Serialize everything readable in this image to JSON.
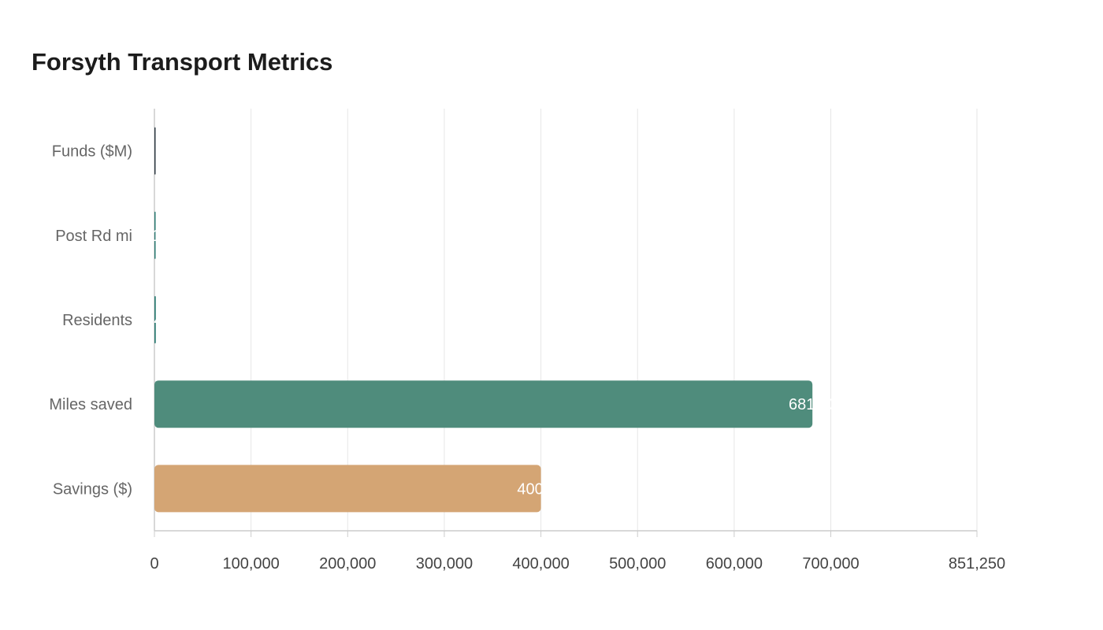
{
  "chart_data": {
    "type": "bar",
    "orientation": "horizontal",
    "title": "Forsyth Transport Metrics",
    "xlabel": "",
    "ylabel": "",
    "categories": [
      "Funds ($M)",
      "Post Rd mi",
      "Residents",
      "Miles saved",
      "Savings ($)"
    ],
    "values": [
      6,
      18,
      1400,
      681000,
      400000
    ],
    "bar_colors": [
      "#2f3b44",
      "#2a7a72",
      "#2a7a72",
      "#4f8c7c",
      "#d4a574"
    ],
    "xlim": [
      0,
      851250
    ],
    "xticks": [
      0,
      100000,
      200000,
      300000,
      400000,
      500000,
      600000,
      700000,
      851250
    ],
    "xtick_labels": [
      "0",
      "100,000",
      "200,000",
      "300,000",
      "400,000",
      "500,000",
      "600,000",
      "700,000",
      "851,250"
    ],
    "grid": "vertical",
    "legend": "none"
  }
}
